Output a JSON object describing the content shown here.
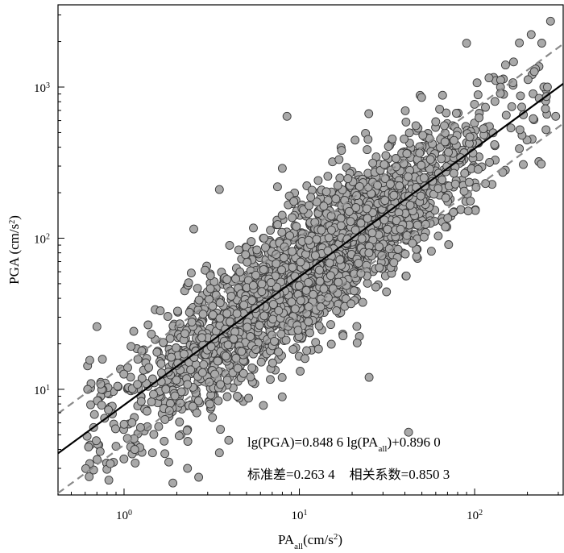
{
  "chart_data": {
    "type": "scatter",
    "xscale": "log",
    "yscale": "log",
    "xlim": [
      0.42,
      320
    ],
    "ylim": [
      2.0,
      3500
    ],
    "x_ticks": [
      {
        "base": "10",
        "exp": "0",
        "value": 1
      },
      {
        "base": "10",
        "exp": "1",
        "value": 10
      },
      {
        "base": "10",
        "exp": "2",
        "value": 100
      }
    ],
    "y_ticks": [
      {
        "base": "10",
        "exp": "1",
        "value": 10
      },
      {
        "base": "10",
        "exp": "2",
        "value": 100
      },
      {
        "base": "10",
        "exp": "3",
        "value": 1000
      }
    ],
    "xlabel": {
      "main": "PA",
      "sub": "all",
      "unit_open": "(cm/s",
      "unit_sup": "2",
      "unit_close": ")"
    },
    "ylabel": {
      "main": "PGA (cm/s",
      "sup": "2",
      "close": ")"
    },
    "fit": {
      "slope": 0.8486,
      "intercept": 0.896,
      "std": 0.2634,
      "r": 0.8503
    },
    "annotation": {
      "line1_a": "lg(PGA)=0.848 6 lg(PA",
      "line1_sub": "all",
      "line1_b": ")+0.896 0",
      "line2_std_label": "标准差",
      "line2_std_value": "=0.263 4",
      "line2_r_label": "相关系数",
      "line2_r_value": "=0.850 3"
    },
    "point_count": 2600,
    "series": [
      {
        "style": "grey-filled-circles"
      },
      {
        "style": "black-solid-line"
      },
      {
        "style": "grey-dashed-lines"
      }
    ],
    "grid": false,
    "sample_points": [
      [
        0.62,
        10.0
      ],
      [
        0.7,
        26.0
      ],
      [
        0.9,
        4.2
      ],
      [
        1.15,
        4.0
      ],
      [
        1.8,
        3.3
      ],
      [
        1.9,
        2.4
      ],
      [
        2.3,
        3.0
      ],
      [
        2.5,
        115
      ],
      [
        3.5,
        210
      ],
      [
        3.5,
        3.8
      ],
      [
        8.5,
        640
      ],
      [
        8.0,
        290
      ],
      [
        25,
        12
      ],
      [
        42,
        5.2
      ],
      [
        90,
        1950
      ],
      [
        180,
        1960
      ],
      [
        150,
        1400
      ],
      [
        260,
        1000
      ],
      [
        290,
        640
      ],
      [
        240,
        310
      ]
    ]
  },
  "colors": {
    "point_fill": "#a9a9a9",
    "point_stroke": "#3a3a3a",
    "fit_line": "#000000",
    "band_line": "#8a8a8a"
  }
}
